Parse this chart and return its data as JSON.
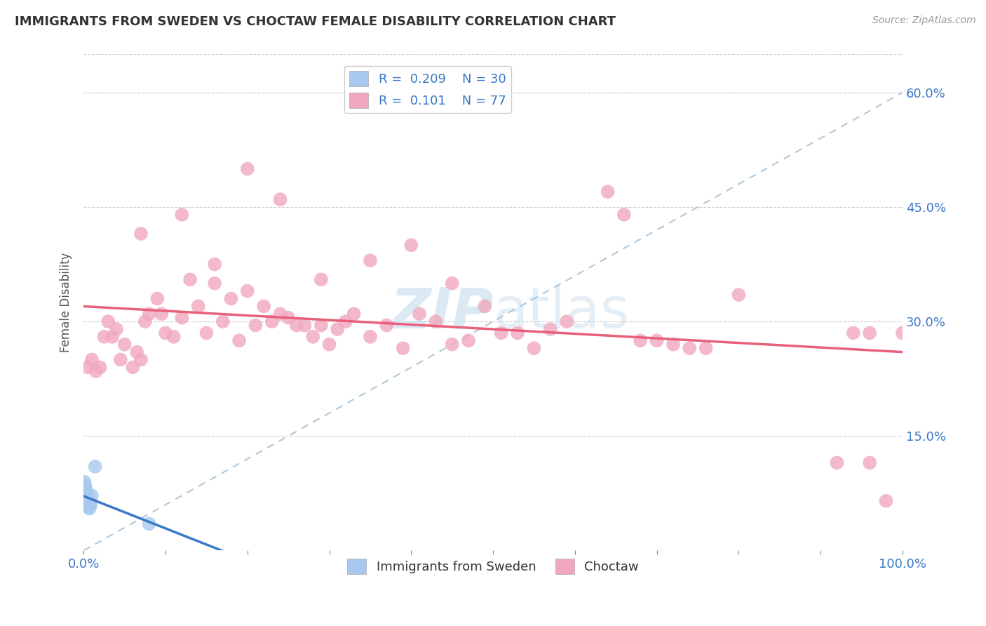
{
  "title": "IMMIGRANTS FROM SWEDEN VS CHOCTAW FEMALE DISABILITY CORRELATION CHART",
  "source": "Source: ZipAtlas.com",
  "ylabel": "Female Disability",
  "xlim": [
    0,
    1.0
  ],
  "ylim": [
    0,
    0.65
  ],
  "xtick_positions": [
    0.0,
    0.1,
    0.2,
    0.3,
    0.4,
    0.5,
    0.6,
    0.7,
    0.8,
    0.9,
    1.0
  ],
  "xtick_labels_show": {
    "0.0": "0.0%",
    "1.0": "100.0%"
  },
  "ytick_positions": [
    0.15,
    0.3,
    0.45,
    0.6
  ],
  "ytick_labels": [
    "15.0%",
    "30.0%",
    "45.0%",
    "60.0%"
  ],
  "legend1_r": "0.209",
  "legend1_n": "30",
  "legend2_r": "0.101",
  "legend2_n": "77",
  "sweden_color": "#a8c8f0",
  "choctaw_color": "#f0a8be",
  "sweden_line_color": "#3a78c9",
  "choctaw_line_color": "#e8607a",
  "diag_line_color": "#b0c8d8",
  "watermark_color": "#cce0f0",
  "legend_label1": "Immigrants from Sweden",
  "legend_label2": "Choctaw",
  "sweden_x": [
    0.001,
    0.001,
    0.001,
    0.002,
    0.002,
    0.002,
    0.002,
    0.003,
    0.003,
    0.003,
    0.003,
    0.003,
    0.004,
    0.004,
    0.004,
    0.004,
    0.005,
    0.005,
    0.005,
    0.005,
    0.006,
    0.006,
    0.006,
    0.007,
    0.007,
    0.008,
    0.009,
    0.01,
    0.014,
    0.08
  ],
  "sweden_y": [
    0.075,
    0.08,
    0.09,
    0.065,
    0.072,
    0.078,
    0.085,
    0.06,
    0.063,
    0.068,
    0.072,
    0.078,
    0.058,
    0.062,
    0.066,
    0.07,
    0.058,
    0.062,
    0.066,
    0.072,
    0.06,
    0.063,
    0.068,
    0.055,
    0.065,
    0.058,
    0.062,
    0.072,
    0.11,
    0.035
  ],
  "choctaw_x": [
    0.005,
    0.01,
    0.015,
    0.02,
    0.025,
    0.03,
    0.035,
    0.04,
    0.045,
    0.05,
    0.06,
    0.065,
    0.07,
    0.075,
    0.08,
    0.09,
    0.095,
    0.1,
    0.11,
    0.12,
    0.13,
    0.14,
    0.15,
    0.16,
    0.17,
    0.18,
    0.19,
    0.2,
    0.21,
    0.22,
    0.23,
    0.24,
    0.25,
    0.26,
    0.27,
    0.28,
    0.29,
    0.3,
    0.31,
    0.32,
    0.33,
    0.35,
    0.37,
    0.39,
    0.41,
    0.43,
    0.45,
    0.47,
    0.49,
    0.51,
    0.53,
    0.55,
    0.57,
    0.59,
    0.64,
    0.66,
    0.68,
    0.7,
    0.72,
    0.74,
    0.76,
    0.8,
    0.92,
    0.94,
    0.96,
    0.96,
    0.98,
    1.0,
    0.07,
    0.12,
    0.16,
    0.2,
    0.24,
    0.29,
    0.35,
    0.4,
    0.45
  ],
  "choctaw_y": [
    0.24,
    0.25,
    0.235,
    0.24,
    0.28,
    0.3,
    0.28,
    0.29,
    0.25,
    0.27,
    0.24,
    0.26,
    0.25,
    0.3,
    0.31,
    0.33,
    0.31,
    0.285,
    0.28,
    0.305,
    0.355,
    0.32,
    0.285,
    0.35,
    0.3,
    0.33,
    0.275,
    0.34,
    0.295,
    0.32,
    0.3,
    0.31,
    0.305,
    0.295,
    0.295,
    0.28,
    0.295,
    0.27,
    0.29,
    0.3,
    0.31,
    0.28,
    0.295,
    0.265,
    0.31,
    0.3,
    0.27,
    0.275,
    0.32,
    0.285,
    0.285,
    0.265,
    0.29,
    0.3,
    0.47,
    0.44,
    0.275,
    0.275,
    0.27,
    0.265,
    0.265,
    0.335,
    0.115,
    0.285,
    0.285,
    0.115,
    0.065,
    0.285,
    0.415,
    0.44,
    0.375,
    0.5,
    0.46,
    0.355,
    0.38,
    0.4,
    0.35
  ]
}
